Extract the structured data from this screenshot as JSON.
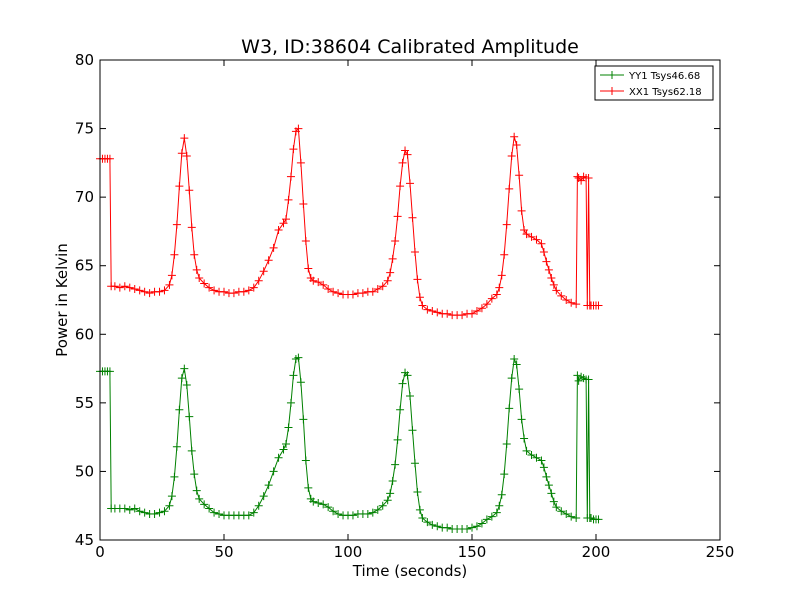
{
  "chart_data": {
    "type": "line",
    "title": "W3, ID:38604 Calibrated Amplitude",
    "xlabel": "Time (seconds)",
    "ylabel": "Power in Kelvin",
    "xlim": [
      0,
      250
    ],
    "ylim": [
      45,
      80
    ],
    "xticks": [
      "0",
      "50",
      "100",
      "150",
      "200",
      "250"
    ],
    "yticks": [
      "45",
      "50",
      "55",
      "60",
      "65",
      "70",
      "75",
      "80"
    ],
    "grid": false,
    "legend_position": "top-right",
    "marker": "+",
    "series": [
      {
        "name": "YY1 Tsys46.68",
        "color": "#008000",
        "points": [
          [
            0,
            57.3
          ],
          [
            1,
            57.3
          ],
          [
            2,
            57.3
          ],
          [
            3,
            57.3
          ],
          [
            4,
            57.3
          ],
          [
            4.5,
            47.3
          ],
          [
            6,
            47.3
          ],
          [
            8,
            47.3
          ],
          [
            10,
            47.3
          ],
          [
            12,
            47.2
          ],
          [
            14,
            47.3
          ],
          [
            16,
            47.1
          ],
          [
            18,
            47.0
          ],
          [
            20,
            46.9
          ],
          [
            22,
            46.9
          ],
          [
            24,
            47.0
          ],
          [
            26,
            47.1
          ],
          [
            28,
            47.5
          ],
          [
            29,
            48.2
          ],
          [
            30,
            49.6
          ],
          [
            31,
            51.8
          ],
          [
            32,
            54.5
          ],
          [
            33,
            56.8
          ],
          [
            34,
            57.5
          ],
          [
            35,
            56.3
          ],
          [
            36,
            54.0
          ],
          [
            37,
            51.5
          ],
          [
            38,
            49.8
          ],
          [
            39,
            48.6
          ],
          [
            40,
            48.0
          ],
          [
            42,
            47.6
          ],
          [
            44,
            47.3
          ],
          [
            46,
            47.0
          ],
          [
            48,
            46.9
          ],
          [
            50,
            46.8
          ],
          [
            52,
            46.8
          ],
          [
            54,
            46.8
          ],
          [
            56,
            46.8
          ],
          [
            58,
            46.8
          ],
          [
            60,
            46.8
          ],
          [
            62,
            47.0
          ],
          [
            64,
            47.5
          ],
          [
            66,
            48.2
          ],
          [
            68,
            49.0
          ],
          [
            70,
            50.0
          ],
          [
            72,
            51.0
          ],
          [
            74,
            51.6
          ],
          [
            75,
            52.0
          ],
          [
            76,
            53.2
          ],
          [
            77,
            55.0
          ],
          [
            78,
            57.0
          ],
          [
            79,
            58.2
          ],
          [
            80,
            58.3
          ],
          [
            81,
            56.5
          ],
          [
            82,
            53.8
          ],
          [
            83,
            50.8
          ],
          [
            84,
            48.8
          ],
          [
            85,
            48.0
          ],
          [
            86,
            47.8
          ],
          [
            88,
            47.7
          ],
          [
            90,
            47.6
          ],
          [
            92,
            47.4
          ],
          [
            94,
            47.1
          ],
          [
            96,
            46.9
          ],
          [
            98,
            46.8
          ],
          [
            100,
            46.8
          ],
          [
            102,
            46.8
          ],
          [
            104,
            46.9
          ],
          [
            106,
            46.9
          ],
          [
            108,
            46.9
          ],
          [
            110,
            47.0
          ],
          [
            112,
            47.2
          ],
          [
            114,
            47.5
          ],
          [
            116,
            47.9
          ],
          [
            117,
            48.4
          ],
          [
            118,
            49.3
          ],
          [
            119,
            50.5
          ],
          [
            120,
            52.3
          ],
          [
            121,
            54.5
          ],
          [
            122,
            56.4
          ],
          [
            123,
            57.2
          ],
          [
            124,
            57.0
          ],
          [
            125,
            55.5
          ],
          [
            126,
            53.0
          ],
          [
            127,
            50.6
          ],
          [
            128,
            48.5
          ],
          [
            129,
            47.2
          ],
          [
            130,
            46.6
          ],
          [
            132,
            46.3
          ],
          [
            134,
            46.1
          ],
          [
            136,
            46.0
          ],
          [
            138,
            45.9
          ],
          [
            140,
            45.9
          ],
          [
            142,
            45.8
          ],
          [
            144,
            45.8
          ],
          [
            146,
            45.8
          ],
          [
            148,
            45.8
          ],
          [
            150,
            45.9
          ],
          [
            152,
            46.0
          ],
          [
            154,
            46.2
          ],
          [
            156,
            46.5
          ],
          [
            158,
            46.7
          ],
          [
            160,
            47.0
          ],
          [
            161,
            47.5
          ],
          [
            162,
            48.3
          ],
          [
            163,
            49.8
          ],
          [
            164,
            52.0
          ],
          [
            165,
            54.6
          ],
          [
            166,
            56.8
          ],
          [
            167,
            58.2
          ],
          [
            168,
            57.8
          ],
          [
            169,
            56.0
          ],
          [
            170,
            53.8
          ],
          [
            171,
            52.4
          ],
          [
            172,
            51.5
          ],
          [
            174,
            51.2
          ],
          [
            176,
            51.0
          ],
          [
            178,
            50.8
          ],
          [
            179,
            50.3
          ],
          [
            180,
            49.6
          ],
          [
            181,
            49.0
          ],
          [
            182,
            48.4
          ],
          [
            183,
            47.8
          ],
          [
            184,
            47.4
          ],
          [
            186,
            47.1
          ],
          [
            188,
            46.9
          ],
          [
            190,
            46.7
          ],
          [
            192,
            46.6
          ],
          [
            192.5,
            57.0
          ],
          [
            193,
            56.6
          ],
          [
            194,
            56.9
          ],
          [
            195,
            56.8
          ],
          [
            196,
            56.7
          ],
          [
            196.5,
            46.6
          ],
          [
            197,
            56.7
          ],
          [
            197.5,
            46.6
          ],
          [
            198,
            46.6
          ],
          [
            199,
            46.5
          ],
          [
            200,
            46.5
          ],
          [
            201,
            46.5
          ]
        ]
      },
      {
        "name": "XX1 Tsys62.18",
        "color": "#ff0000",
        "points": [
          [
            0,
            72.8
          ],
          [
            1,
            72.8
          ],
          [
            2,
            72.8
          ],
          [
            3,
            72.8
          ],
          [
            4,
            72.8
          ],
          [
            4.5,
            63.5
          ],
          [
            6,
            63.5
          ],
          [
            8,
            63.4
          ],
          [
            10,
            63.5
          ],
          [
            12,
            63.4
          ],
          [
            14,
            63.3
          ],
          [
            16,
            63.2
          ],
          [
            18,
            63.1
          ],
          [
            20,
            63.0
          ],
          [
            22,
            63.1
          ],
          [
            24,
            63.1
          ],
          [
            26,
            63.2
          ],
          [
            28,
            63.6
          ],
          [
            29,
            64.3
          ],
          [
            30,
            65.8
          ],
          [
            31,
            68.0
          ],
          [
            32,
            70.8
          ],
          [
            33,
            73.2
          ],
          [
            34,
            74.3
          ],
          [
            35,
            73.0
          ],
          [
            36,
            70.5
          ],
          [
            37,
            67.8
          ],
          [
            38,
            65.8
          ],
          [
            39,
            64.7
          ],
          [
            40,
            64.1
          ],
          [
            42,
            63.7
          ],
          [
            44,
            63.4
          ],
          [
            46,
            63.2
          ],
          [
            48,
            63.1
          ],
          [
            50,
            63.1
          ],
          [
            52,
            63.0
          ],
          [
            54,
            63.0
          ],
          [
            56,
            63.1
          ],
          [
            58,
            63.1
          ],
          [
            60,
            63.2
          ],
          [
            62,
            63.4
          ],
          [
            64,
            63.9
          ],
          [
            66,
            64.6
          ],
          [
            68,
            65.4
          ],
          [
            70,
            66.3
          ],
          [
            72,
            67.6
          ],
          [
            74,
            68.1
          ],
          [
            75,
            68.4
          ],
          [
            76,
            69.8
          ],
          [
            77,
            71.5
          ],
          [
            78,
            73.5
          ],
          [
            79,
            74.8
          ],
          [
            80,
            75.0
          ],
          [
            81,
            72.5
          ],
          [
            82,
            69.5
          ],
          [
            83,
            66.8
          ],
          [
            84,
            64.8
          ],
          [
            85,
            64.1
          ],
          [
            86,
            63.9
          ],
          [
            88,
            63.8
          ],
          [
            90,
            63.6
          ],
          [
            92,
            63.3
          ],
          [
            94,
            63.1
          ],
          [
            96,
            63.0
          ],
          [
            98,
            62.9
          ],
          [
            100,
            62.9
          ],
          [
            102,
            62.9
          ],
          [
            104,
            63.0
          ],
          [
            106,
            63.0
          ],
          [
            108,
            63.1
          ],
          [
            110,
            63.1
          ],
          [
            112,
            63.3
          ],
          [
            114,
            63.5
          ],
          [
            116,
            63.9
          ],
          [
            117,
            64.5
          ],
          [
            118,
            65.5
          ],
          [
            119,
            66.8
          ],
          [
            120,
            68.6
          ],
          [
            121,
            70.8
          ],
          [
            122,
            72.5
          ],
          [
            123,
            73.4
          ],
          [
            124,
            73.1
          ],
          [
            125,
            71.0
          ],
          [
            126,
            68.5
          ],
          [
            127,
            66.0
          ],
          [
            128,
            64.0
          ],
          [
            129,
            62.7
          ],
          [
            130,
            62.1
          ],
          [
            132,
            61.8
          ],
          [
            134,
            61.7
          ],
          [
            136,
            61.6
          ],
          [
            138,
            61.5
          ],
          [
            140,
            61.5
          ],
          [
            142,
            61.4
          ],
          [
            144,
            61.4
          ],
          [
            146,
            61.4
          ],
          [
            148,
            61.5
          ],
          [
            150,
            61.5
          ],
          [
            152,
            61.7
          ],
          [
            154,
            61.9
          ],
          [
            156,
            62.2
          ],
          [
            158,
            62.6
          ],
          [
            160,
            62.9
          ],
          [
            161,
            63.4
          ],
          [
            162,
            64.3
          ],
          [
            163,
            65.8
          ],
          [
            164,
            68.0
          ],
          [
            165,
            70.6
          ],
          [
            166,
            73.0
          ],
          [
            167,
            74.4
          ],
          [
            168,
            73.8
          ],
          [
            169,
            71.6
          ],
          [
            170,
            69.0
          ],
          [
            171,
            67.6
          ],
          [
            172,
            67.3
          ],
          [
            174,
            67.1
          ],
          [
            176,
            66.9
          ],
          [
            178,
            66.6
          ],
          [
            179,
            66.0
          ],
          [
            180,
            65.3
          ],
          [
            181,
            64.7
          ],
          [
            182,
            64.1
          ],
          [
            183,
            63.6
          ],
          [
            184,
            63.2
          ],
          [
            186,
            62.8
          ],
          [
            188,
            62.5
          ],
          [
            190,
            62.3
          ],
          [
            192,
            62.2
          ],
          [
            192.5,
            71.5
          ],
          [
            193,
            71.4
          ],
          [
            194,
            71.2
          ],
          [
            195,
            71.5
          ],
          [
            196,
            71.4
          ],
          [
            196.5,
            62.1
          ],
          [
            197,
            71.4
          ],
          [
            197.5,
            62.1
          ],
          [
            198,
            62.1
          ],
          [
            199,
            62.1
          ],
          [
            200,
            62.1
          ],
          [
            201,
            62.1
          ]
        ]
      }
    ]
  }
}
